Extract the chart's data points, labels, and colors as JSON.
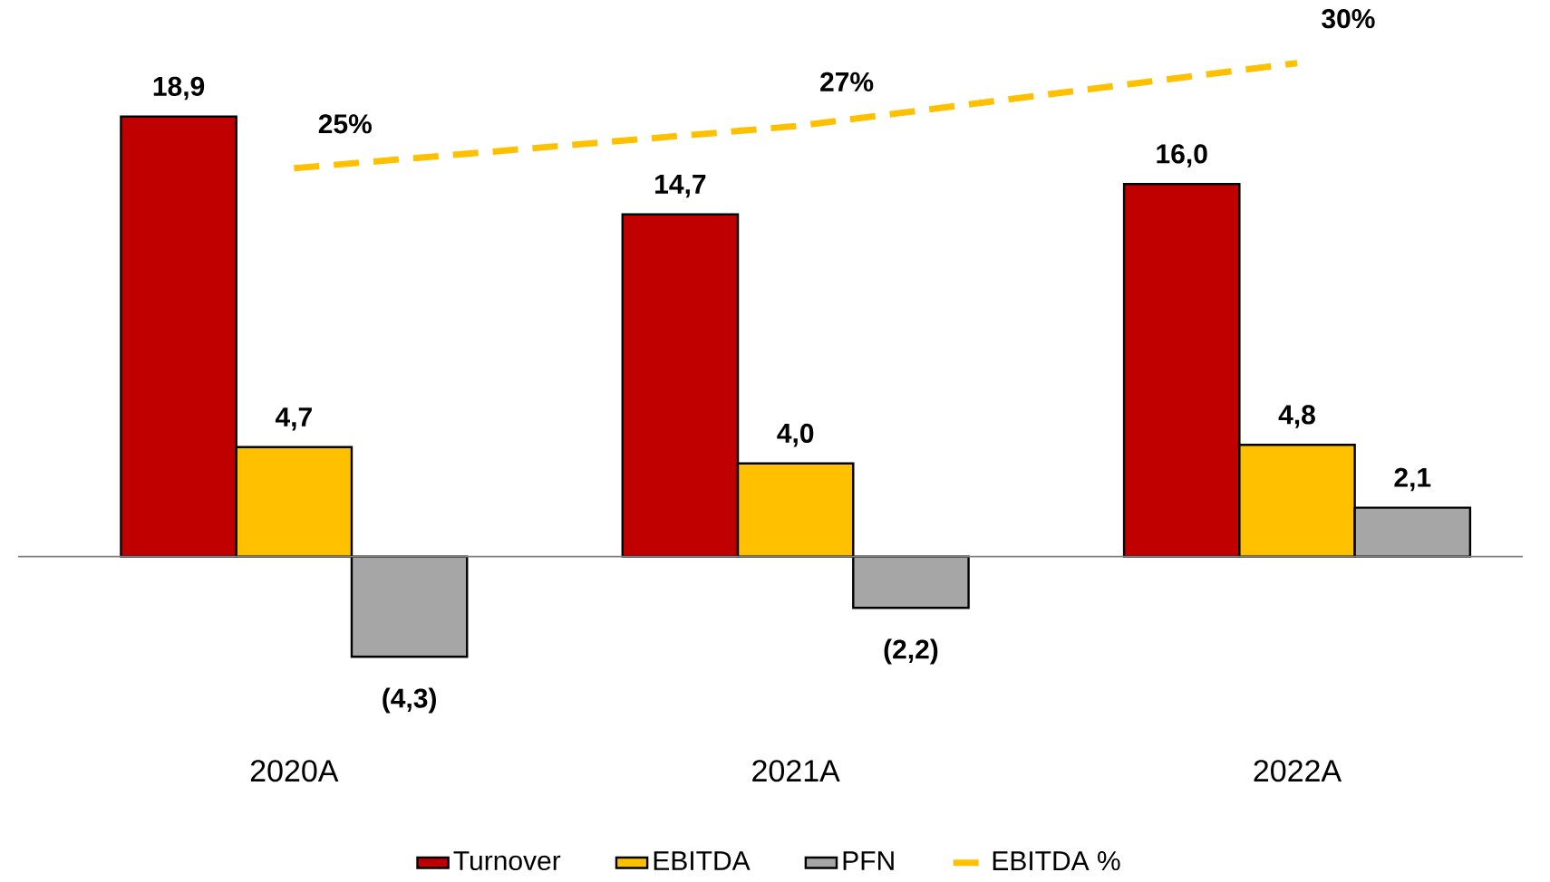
{
  "chart_data": {
    "type": "bar",
    "categories": [
      "2020A",
      "2021A",
      "2022A"
    ],
    "tick_labels": "x",
    "legend": "bottom",
    "series": [
      {
        "name": "Turnover",
        "color": "#c00000",
        "values": [
          18.9,
          14.7,
          16.0
        ],
        "value_labels": [
          "18,9",
          "14,7",
          "16,0"
        ]
      },
      {
        "name": "EBITDA",
        "color": "#ffc000",
        "values": [
          4.7,
          4.0,
          4.8
        ],
        "value_labels": [
          "4,7",
          "4,0",
          "4,8"
        ]
      },
      {
        "name": "PFN",
        "color": "#a6a6a6",
        "values": [
          -4.3,
          -2.2,
          2.1
        ],
        "value_labels": [
          "(4,3)",
          "(2,2)",
          "2,1"
        ]
      },
      {
        "name": "EBITDA %",
        "type": "line",
        "axis": "y2",
        "color": "#ffc000",
        "line_style": "dashed",
        "marker": "none",
        "values": [
          25,
          27,
          30
        ],
        "value_labels": [
          "25%",
          "27%",
          "30%"
        ]
      }
    ]
  }
}
